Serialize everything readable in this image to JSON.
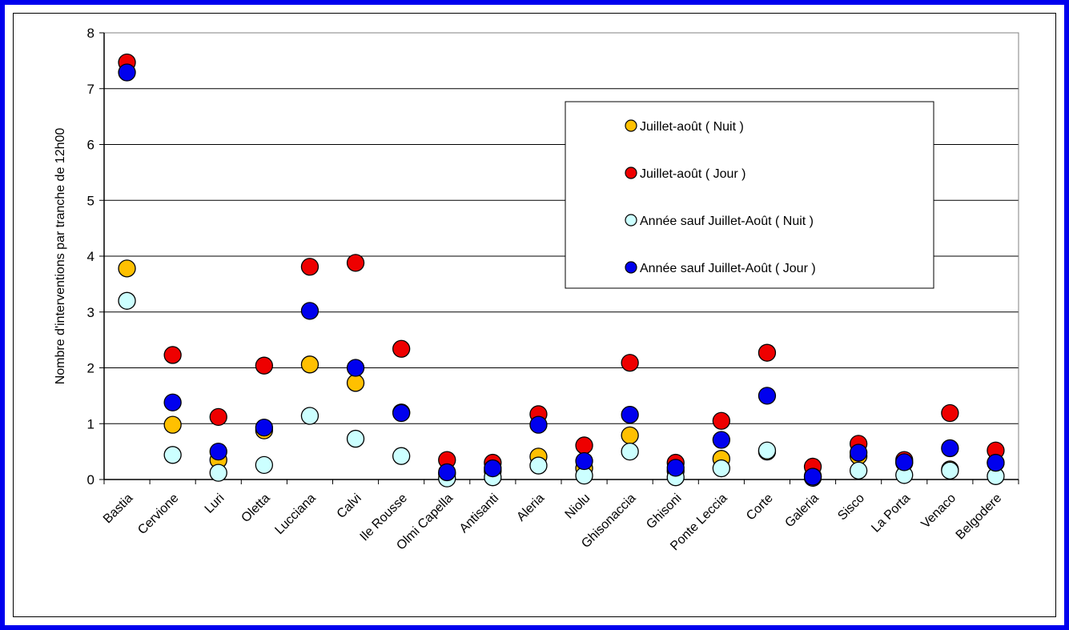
{
  "chart_data": {
    "type": "scatter",
    "title": "",
    "xlabel": "",
    "ylabel": "Nombre d'interventions par tranche de 12h00",
    "ylim": [
      0,
      8
    ],
    "yticks": [
      0,
      1,
      2,
      3,
      4,
      5,
      6,
      7,
      8
    ],
    "grid": true,
    "legend_position": "top-right",
    "categories": [
      "Bastia",
      "Cervione",
      "Luri",
      "Oletta",
      "Lucciana",
      "Calvi",
      "Ile Rousse",
      "Olmi Capella",
      "Antisanti",
      "Aleria",
      "Niolu",
      "Ghisonaccia",
      "Ghisoni",
      "Ponte Leccia",
      "Corte",
      "Galeria",
      "Sisco",
      "La Porta",
      "Venaco",
      "Belgodere"
    ],
    "series": [
      {
        "name": "Juillet-août ( Nuit )",
        "color": "#ffc000",
        "values": [
          3.78,
          0.98,
          0.35,
          0.88,
          2.06,
          1.73,
          1.2,
          0.1,
          0.15,
          0.41,
          0.2,
          0.79,
          0.15,
          0.37,
          0.5,
          0.06,
          0.42,
          0.3,
          0.18,
          0.3
        ]
      },
      {
        "name": "Juillet-août ( Jour )",
        "color": "#ee0000",
        "values": [
          7.47,
          2.23,
          1.12,
          2.04,
          3.81,
          3.88,
          2.34,
          0.35,
          0.3,
          1.17,
          0.61,
          2.09,
          0.3,
          1.05,
          2.27,
          0.23,
          0.64,
          0.35,
          1.19,
          0.52
        ]
      },
      {
        "name": "Année sauf Juillet-Août ( Nuit )",
        "color": "#ccffff",
        "values": [
          3.2,
          0.44,
          0.12,
          0.26,
          1.14,
          0.73,
          0.42,
          0.02,
          0.04,
          0.25,
          0.07,
          0.5,
          0.04,
          0.2,
          0.52,
          0.03,
          0.16,
          0.08,
          0.16,
          0.06
        ]
      },
      {
        "name": "Année sauf Juillet-Août ( Jour )",
        "color": "#0000ee",
        "values": [
          7.29,
          1.38,
          0.5,
          0.93,
          3.02,
          2.0,
          1.19,
          0.13,
          0.2,
          0.98,
          0.33,
          1.16,
          0.21,
          0.71,
          1.5,
          0.05,
          0.48,
          0.31,
          0.56,
          0.3
        ]
      }
    ]
  }
}
